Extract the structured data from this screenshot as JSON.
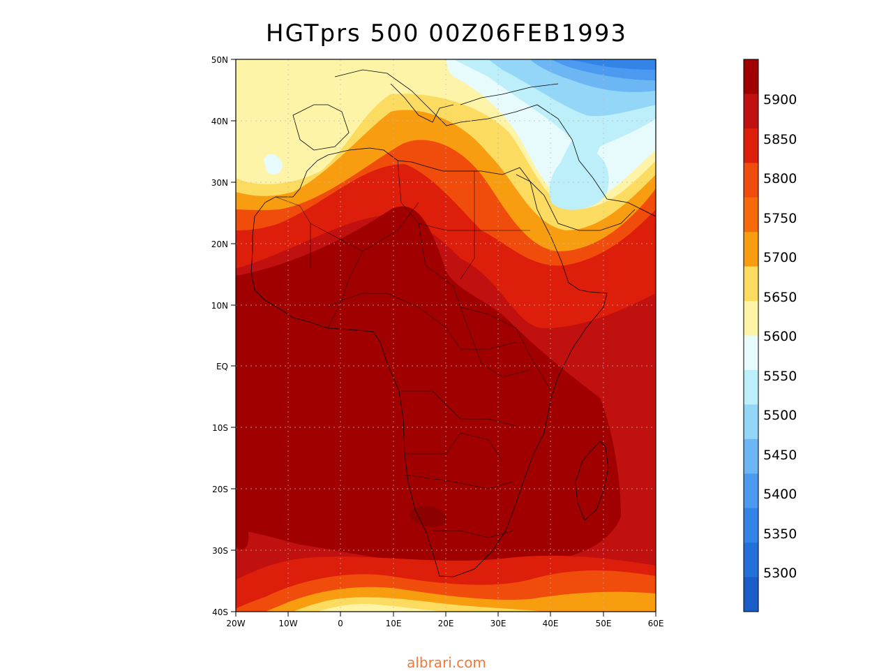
{
  "title": "HGTprs 500 00Z06FEB1993",
  "watermark": "albrari.com",
  "map": {
    "region": "Africa",
    "lat_ticks": [
      "50N",
      "40N",
      "30N",
      "20N",
      "10N",
      "EQ",
      "10S",
      "20S",
      "30S",
      "40S"
    ],
    "lon_ticks": [
      "20W",
      "10W",
      "0",
      "10E",
      "20E",
      "30E",
      "40E",
      "50E",
      "60E"
    ],
    "lat_range": [
      -40,
      50
    ],
    "lon_range": [
      -20,
      60
    ],
    "gridlines": true,
    "field": "500 hPa geopotential height (gpm)"
  },
  "colorbar": {
    "labels": [
      "5900",
      "5850",
      "5800",
      "5750",
      "5700",
      "5650",
      "5600",
      "5550",
      "5500",
      "5450",
      "5400",
      "5350",
      "5300"
    ],
    "levels_top_to_bottom": [
      {
        "color": "#a00000"
      },
      {
        "color": "#c01010"
      },
      {
        "color": "#dc1e0a"
      },
      {
        "color": "#f04c0c"
      },
      {
        "color": "#f76a0c"
      },
      {
        "color": "#f89c10"
      },
      {
        "color": "#fcdc60"
      },
      {
        "color": "#fdf4a8"
      },
      {
        "color": "#e8fbfc"
      },
      {
        "color": "#bdeffa"
      },
      {
        "color": "#94d6f8"
      },
      {
        "color": "#6cb6f4"
      },
      {
        "color": "#4c9af0"
      },
      {
        "color": "#3484e8"
      },
      {
        "color": "#2370da"
      },
      {
        "color": "#1a5cc8"
      }
    ]
  }
}
